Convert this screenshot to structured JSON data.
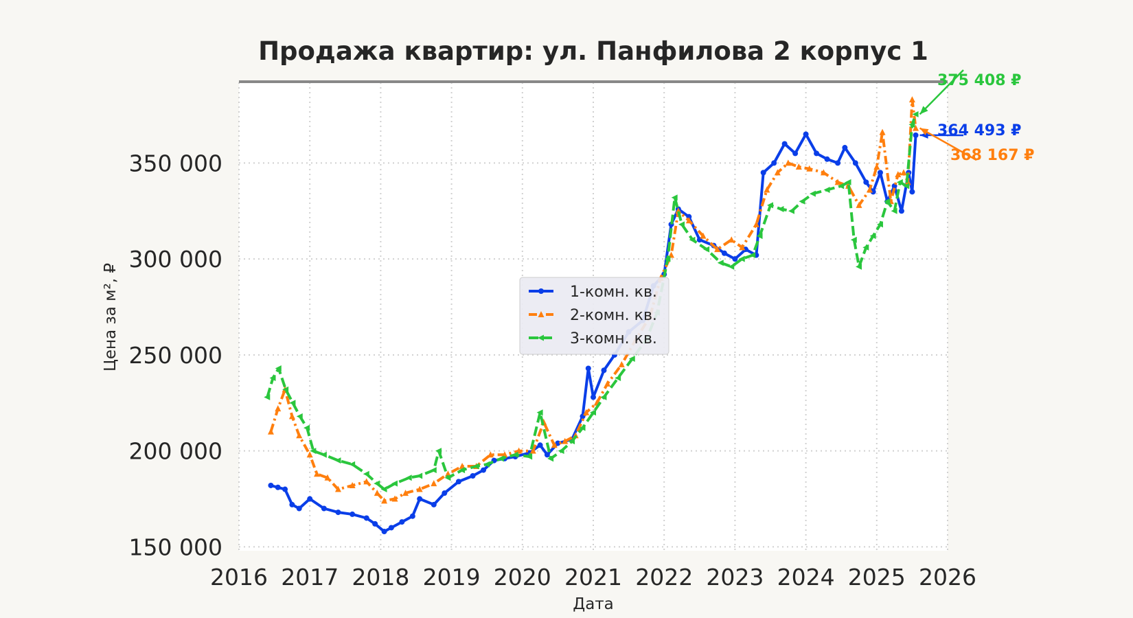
{
  "chart_data": {
    "type": "line",
    "title": "Продажа квартир: ул. Панфилова 2 корпус 1",
    "xlabel": "Дата",
    "ylabel": "Цена за м², ₽",
    "xlim": [
      2016.0,
      2026.0
    ],
    "ylim": [
      148000,
      392000
    ],
    "x_ticks": [
      {
        "value": 2016,
        "label": "2016"
      },
      {
        "value": 2017,
        "label": "2017"
      },
      {
        "value": 2018,
        "label": "2018"
      },
      {
        "value": 2019,
        "label": "2019"
      },
      {
        "value": 2020,
        "label": "2020"
      },
      {
        "value": 2021,
        "label": "2021"
      },
      {
        "value": 2022,
        "label": "2022"
      },
      {
        "value": 2023,
        "label": "2023"
      },
      {
        "value": 2024,
        "label": "2024"
      },
      {
        "value": 2025,
        "label": "2025"
      },
      {
        "value": 2026,
        "label": "2026"
      }
    ],
    "y_ticks": [
      {
        "value": 150000,
        "label": "150 000"
      },
      {
        "value": 200000,
        "label": "200 000"
      },
      {
        "value": 250000,
        "label": "250 000"
      },
      {
        "value": 300000,
        "label": "300 000"
      },
      {
        "value": 350000,
        "label": "350 000"
      }
    ],
    "grid": true,
    "legend_position": "center",
    "series": [
      {
        "name": "1-комн. кв.",
        "color": "#0a3ee8",
        "style": "solid",
        "marker": "circle",
        "x": [
          2016.45,
          2016.55,
          2016.65,
          2016.75,
          2016.85,
          2017.0,
          2017.2,
          2017.4,
          2017.6,
          2017.8,
          2017.92,
          2018.05,
          2018.15,
          2018.3,
          2018.45,
          2018.55,
          2018.75,
          2018.9,
          2019.1,
          2019.3,
          2019.45,
          2019.6,
          2019.75,
          2019.9,
          2020.1,
          2020.25,
          2020.35,
          2020.5,
          2020.7,
          2020.85,
          2020.93,
          2021.0,
          2021.15,
          2021.3,
          2021.5,
          2021.7,
          2021.85,
          2022.0,
          2022.1,
          2022.2,
          2022.35,
          2022.5,
          2022.7,
          2022.85,
          2023.0,
          2023.15,
          2023.3,
          2023.4,
          2023.55,
          2023.7,
          2023.85,
          2024.0,
          2024.15,
          2024.3,
          2024.45,
          2024.55,
          2024.7,
          2024.85,
          2024.95,
          2025.05,
          2025.15,
          2025.25,
          2025.35,
          2025.45,
          2025.5,
          2025.55
        ],
        "y": [
          182000,
          181000,
          180000,
          172000,
          170000,
          175000,
          170000,
          168000,
          167000,
          165000,
          162000,
          158000,
          160000,
          163000,
          166000,
          175000,
          172000,
          178000,
          184000,
          187000,
          190000,
          195000,
          196000,
          197000,
          199000,
          203000,
          198000,
          204000,
          206000,
          218000,
          243000,
          228000,
          242000,
          250000,
          262000,
          268000,
          286000,
          292000,
          318000,
          326000,
          322000,
          310000,
          307000,
          303000,
          300000,
          305000,
          302000,
          345000,
          350000,
          360000,
          355000,
          365000,
          355000,
          352000,
          350000,
          358000,
          350000,
          340000,
          335000,
          345000,
          330000,
          338000,
          325000,
          345000,
          335000,
          364493
        ]
      },
      {
        "name": "2-комн. кв.",
        "color": "#ff7f0e",
        "style": "dashdot",
        "marker": "triangle",
        "x": [
          2016.45,
          2016.55,
          2016.65,
          2016.75,
          2016.85,
          2017.0,
          2017.1,
          2017.25,
          2017.4,
          2017.6,
          2017.8,
          2017.95,
          2018.05,
          2018.2,
          2018.35,
          2018.55,
          2018.75,
          2018.95,
          2019.15,
          2019.35,
          2019.55,
          2019.75,
          2019.95,
          2020.15,
          2020.3,
          2020.45,
          2020.6,
          2020.75,
          2020.9,
          2021.05,
          2021.2,
          2021.4,
          2021.6,
          2021.8,
          2021.95,
          2022.1,
          2022.2,
          2022.35,
          2022.55,
          2022.75,
          2022.95,
          2023.1,
          2023.3,
          2023.45,
          2023.6,
          2023.75,
          2023.9,
          2024.05,
          2024.25,
          2024.45,
          2024.6,
          2024.75,
          2024.9,
          2025.0,
          2025.08,
          2025.2,
          2025.3,
          2025.38,
          2025.44,
          2025.5,
          2025.55
        ],
        "y": [
          210000,
          222000,
          232000,
          218000,
          208000,
          198000,
          188000,
          186000,
          180000,
          182000,
          184000,
          178000,
          174000,
          175000,
          178000,
          180000,
          183000,
          188000,
          192000,
          192000,
          198000,
          198000,
          200000,
          200000,
          215000,
          203000,
          205000,
          208000,
          220000,
          225000,
          235000,
          245000,
          258000,
          270000,
          290000,
          302000,
          325000,
          320000,
          312000,
          305000,
          310000,
          306000,
          318000,
          336000,
          345000,
          350000,
          348000,
          347000,
          345000,
          340000,
          338000,
          328000,
          336000,
          348000,
          366000,
          330000,
          344000,
          345000,
          340000,
          383000,
          368167
        ]
      },
      {
        "name": "3-комн. кв.",
        "color": "#2ac63d",
        "style": "dashed",
        "marker": "triangle-left",
        "x": [
          2016.4,
          2016.48,
          2016.56,
          2016.66,
          2016.76,
          2016.86,
          2016.96,
          2017.05,
          2017.2,
          2017.4,
          2017.6,
          2017.8,
          2017.95,
          2018.05,
          2018.2,
          2018.4,
          2018.55,
          2018.75,
          2018.82,
          2018.95,
          2019.15,
          2019.35,
          2019.5,
          2019.7,
          2019.9,
          2020.1,
          2020.25,
          2020.4,
          2020.55,
          2020.7,
          2020.85,
          2021.0,
          2021.15,
          2021.35,
          2021.55,
          2021.75,
          2021.9,
          2022.05,
          2022.15,
          2022.25,
          2022.4,
          2022.6,
          2022.8,
          2022.95,
          2023.1,
          2023.25,
          2023.35,
          2023.5,
          2023.65,
          2023.8,
          2023.95,
          2024.1,
          2024.3,
          2024.5,
          2024.6,
          2024.68,
          2024.75,
          2024.85,
          2024.95,
          2025.05,
          2025.15,
          2025.25,
          2025.33,
          2025.42,
          2025.5,
          2025.55
        ],
        "y": [
          228000,
          238000,
          243000,
          232000,
          225000,
          218000,
          212000,
          200000,
          198000,
          195000,
          193000,
          188000,
          183000,
          180000,
          183000,
          186000,
          187000,
          190000,
          200000,
          186000,
          190000,
          192000,
          193000,
          196000,
          198000,
          197000,
          220000,
          196000,
          200000,
          205000,
          212000,
          220000,
          228000,
          238000,
          248000,
          258000,
          272000,
          300000,
          332000,
          318000,
          310000,
          305000,
          298000,
          296000,
          300000,
          302000,
          312000,
          328000,
          326000,
          325000,
          330000,
          334000,
          336000,
          338000,
          340000,
          310000,
          296000,
          306000,
          312000,
          318000,
          330000,
          325000,
          340000,
          338000,
          370000,
          375408
        ]
      }
    ],
    "annotations": [
      {
        "text": "375 408 ₽",
        "series": "3-комн. кв."
      },
      {
        "text": "364 493 ₽",
        "series": "1-комн. кв."
      },
      {
        "text": "368 167 ₽",
        "series": "2-комн. кв."
      }
    ]
  }
}
